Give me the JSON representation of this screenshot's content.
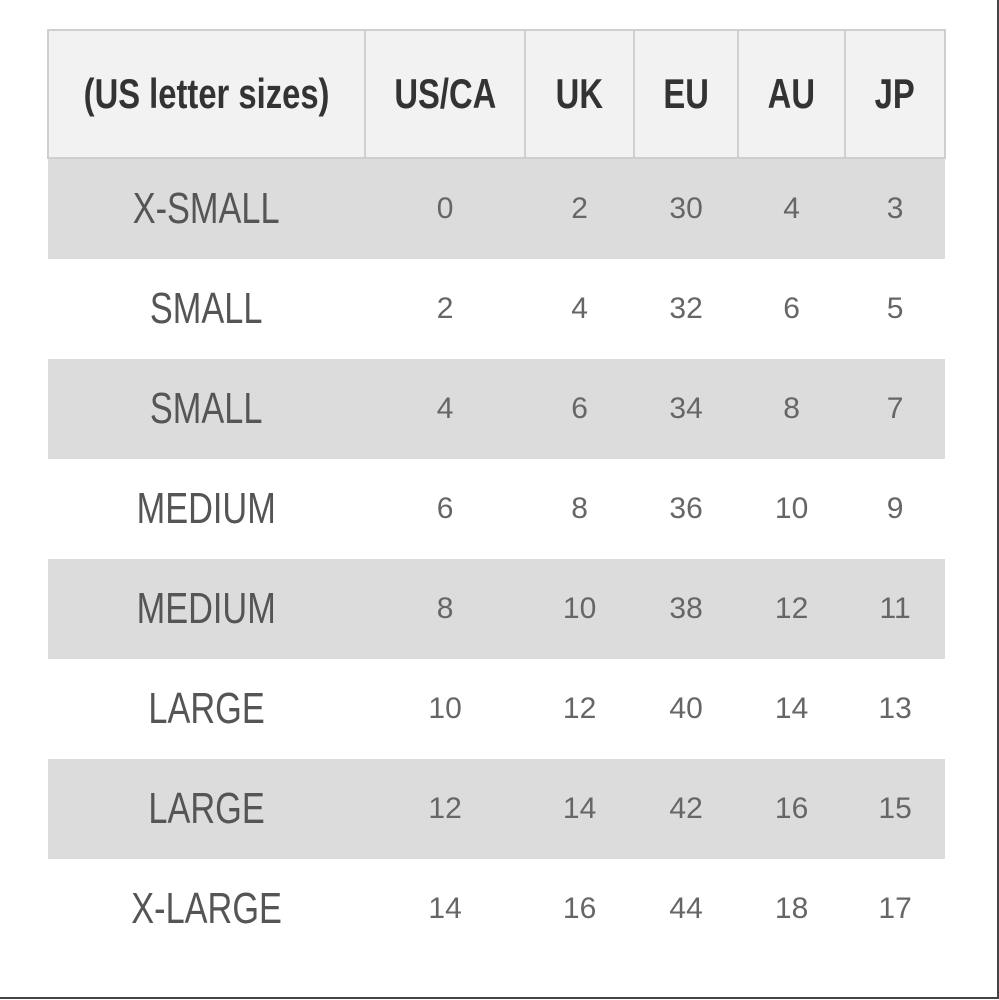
{
  "table": {
    "headers": [
      "(US letter sizes)",
      "US/CA",
      "UK",
      "EU",
      "AU",
      "JP"
    ],
    "rows": [
      [
        "X-SMALL",
        0,
        2,
        30,
        4,
        3
      ],
      [
        "SMALL",
        2,
        4,
        32,
        6,
        5
      ],
      [
        "SMALL",
        4,
        6,
        34,
        8,
        7
      ],
      [
        "MEDIUM",
        6,
        8,
        36,
        10,
        9
      ],
      [
        "MEDIUM",
        8,
        10,
        38,
        12,
        11
      ],
      [
        "LARGE",
        10,
        12,
        40,
        14,
        13
      ],
      [
        "LARGE",
        12,
        14,
        42,
        16,
        15
      ],
      [
        "X-LARGE",
        14,
        16,
        44,
        18,
        17
      ]
    ]
  }
}
